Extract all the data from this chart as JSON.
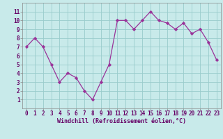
{
  "x": [
    0,
    1,
    2,
    3,
    4,
    5,
    6,
    7,
    8,
    9,
    10,
    11,
    12,
    13,
    14,
    15,
    16,
    17,
    18,
    19,
    20,
    21,
    22,
    23
  ],
  "y": [
    7.0,
    8.0,
    7.0,
    5.0,
    3.0,
    4.0,
    3.5,
    2.0,
    1.0,
    3.0,
    5.0,
    10.0,
    10.0,
    9.0,
    10.0,
    11.0,
    10.0,
    9.7,
    9.0,
    9.7,
    8.5,
    9.0,
    7.5,
    5.5
  ],
  "line_color": "#993399",
  "marker_color": "#993399",
  "bg_color": "#c8eaea",
  "grid_color": "#99cccc",
  "xlabel": "Windchill (Refroidissement éolien,°C)",
  "text_color": "#660066",
  "xlim": [
    -0.5,
    23.5
  ],
  "ylim": [
    0,
    12
  ],
  "yticks": [
    1,
    2,
    3,
    4,
    5,
    6,
    7,
    8,
    9,
    10,
    11
  ],
  "xticks": [
    0,
    1,
    2,
    3,
    4,
    5,
    6,
    7,
    8,
    9,
    10,
    11,
    12,
    13,
    14,
    15,
    16,
    17,
    18,
    19,
    20,
    21,
    22,
    23
  ],
  "tick_fontsize": 5.5,
  "label_fontsize": 6.0
}
